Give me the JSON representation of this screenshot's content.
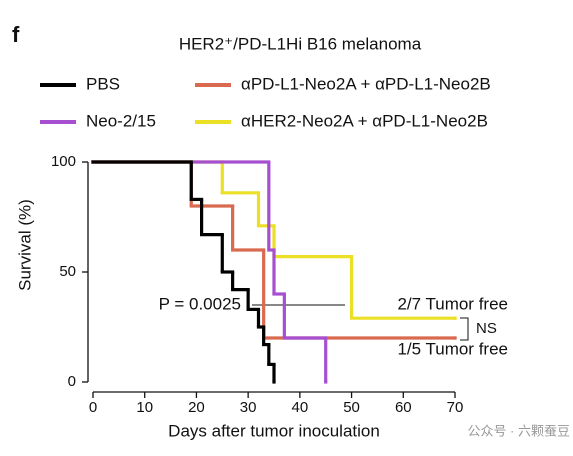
{
  "panel_label": "f",
  "chart_data": {
    "type": "line",
    "step": true,
    "title": "HER2⁺/PD-L1Hi B16 melanoma",
    "xlabel": "Days after tumor inoculation",
    "ylabel": "Survival (%)",
    "xlim": [
      0,
      70
    ],
    "ylim": [
      0,
      100
    ],
    "xticks": [
      0,
      10,
      20,
      30,
      40,
      50,
      60,
      70
    ],
    "yticks": [
      0,
      50,
      100
    ],
    "series": [
      {
        "name": "PBS",
        "color": "#000000",
        "x": [
          0,
          19,
          21,
          25,
          27,
          30,
          32,
          33,
          34,
          35
        ],
        "values": [
          100,
          83,
          67,
          50,
          42,
          33,
          25,
          17,
          8,
          0
        ]
      },
      {
        "name": "Neo-2/15",
        "color": "#a64fd0",
        "x": [
          0,
          34,
          35,
          37,
          45
        ],
        "values": [
          100,
          60,
          40,
          20,
          0
        ]
      },
      {
        "name": "αPD-L1-Neo2A + αPD-L1-Neo2B",
        "color": "#d9694f",
        "x": [
          0,
          19,
          27,
          33,
          70
        ],
        "values": [
          100,
          80,
          60,
          20,
          20
        ]
      },
      {
        "name": "αHER2-Neo2A + αPD-L1-Neo2B",
        "color": "#ece026",
        "x": [
          0,
          25,
          32,
          35,
          50,
          70
        ],
        "values": [
          100,
          86,
          71,
          57,
          29,
          29
        ]
      }
    ],
    "annotations": [
      "P = 0.0025",
      "2/7 Tumor free",
      "1/5 Tumor free",
      "NS"
    ]
  },
  "watermark": "公众号 · 六颗蚕豆"
}
